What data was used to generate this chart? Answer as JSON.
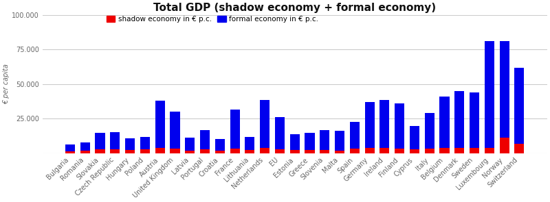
{
  "title": "Total GDP (shadow economy + formal economy)",
  "ylabel": "€ per capita",
  "ylim": [
    0,
    100000
  ],
  "yticks": [
    0,
    25000,
    50000,
    75000,
    100000
  ],
  "ytick_labels": [
    "",
    "25.000",
    "50.000",
    "75.000",
    "100.000"
  ],
  "legend_shadow": "shadow economy in € p.c.",
  "legend_formal": "formal economy in € p.c.",
  "countries": [
    "Bulgaria",
    "Romania",
    "Slovakia",
    "Czech Republic",
    "Hungary",
    "Poland",
    "Austria",
    "United Kingdom",
    "Latvia",
    "Portugal",
    "Croatia",
    "France",
    "Lithuania",
    "Netherlands",
    "EU",
    "Estonia",
    "Greece",
    "Slovenia",
    "Malta",
    "Spain",
    "Germany",
    "Ireland",
    "Finland",
    "Cyprus",
    "Italy",
    "Belgium",
    "Denmark",
    "Sweden",
    "Luxembourg",
    "Norway",
    "Switzerland"
  ],
  "formal": [
    4500,
    5500,
    12000,
    12500,
    8500,
    9000,
    34000,
    27000,
    9500,
    14000,
    8500,
    28500,
    9500,
    34500,
    23000,
    11500,
    12500,
    14500,
    14500,
    19500,
    33000,
    34500,
    33000,
    17000,
    26000,
    37000,
    41000,
    40000,
    77000,
    70000,
    55000
  ],
  "shadow": [
    1500,
    2000,
    2800,
    2800,
    2200,
    2800,
    3800,
    3200,
    1800,
    2800,
    1800,
    3200,
    2200,
    3800,
    2800,
    2200,
    2200,
    2200,
    1800,
    3200,
    3800,
    3800,
    3200,
    2800,
    3200,
    3800,
    3800,
    3800,
    3800,
    11000,
    6500
  ],
  "bar_color_formal": "#0000ee",
  "bar_color_shadow": "#ee0000",
  "bg_color": "#ffffff",
  "grid_color": "#cccccc",
  "title_fontsize": 11,
  "axis_label_fontsize": 7,
  "tick_label_fontsize": 7,
  "legend_fontsize": 7.5
}
